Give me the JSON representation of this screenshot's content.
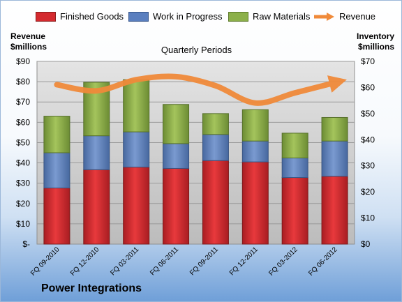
{
  "chart_data": {
    "type": "bar",
    "subtitle": "Quarterly Periods",
    "categories": [
      "FQ 09-2010",
      "FQ 12-2010",
      "FQ 03-2011",
      "FQ 06-2011",
      "FQ 09-2011",
      "FQ 12-2011",
      "FQ 03-2012",
      "FQ 06-2012"
    ],
    "stacked": true,
    "series": [
      {
        "name": "Finished Goods",
        "axis": "right",
        "values": [
          21.5,
          28.5,
          29.5,
          29,
          32,
          31.5,
          25.5,
          26
        ]
      },
      {
        "name": "Work in Progress",
        "axis": "right",
        "values": [
          13.5,
          13,
          13.5,
          9.5,
          10,
          8,
          7.5,
          13.5
        ]
      },
      {
        "name": "Raw Materials",
        "axis": "right",
        "values": [
          14,
          20.5,
          20,
          15,
          8,
          12,
          9.5,
          9
        ]
      },
      {
        "name": "Revenue",
        "type": "line",
        "axis": "left",
        "values": [
          78.5,
          75.5,
          81,
          82.5,
          78,
          69.5,
          74.5,
          79.5
        ]
      }
    ],
    "y_left": {
      "label": "Revenue $millions",
      "range": [
        0,
        90
      ],
      "ticks": [
        "$-",
        "$10",
        "$20",
        "$30",
        "$40",
        "$50",
        "$60",
        "$70",
        "$80",
        "$90"
      ]
    },
    "y_right": {
      "label": "Inventory $millions",
      "range": [
        0,
        70
      ],
      "ticks": [
        "$0",
        "$10",
        "$20",
        "$30",
        "$40",
        "$50",
        "$60",
        "$70"
      ]
    },
    "legend_position": "top",
    "grid": true
  },
  "labels": {
    "left_title_1": "Revenue",
    "left_title_2": "$millions",
    "right_title_1": "Inventory",
    "right_title_2": "$millions",
    "company": "Power Integrations"
  },
  "colors": {
    "finished_goods": "#d42a2f",
    "work_in_progress": "#5a7fbf",
    "raw_materials": "#8cb04a",
    "revenue": "#f08a3a",
    "plot_bg": "#c9c9c9"
  }
}
